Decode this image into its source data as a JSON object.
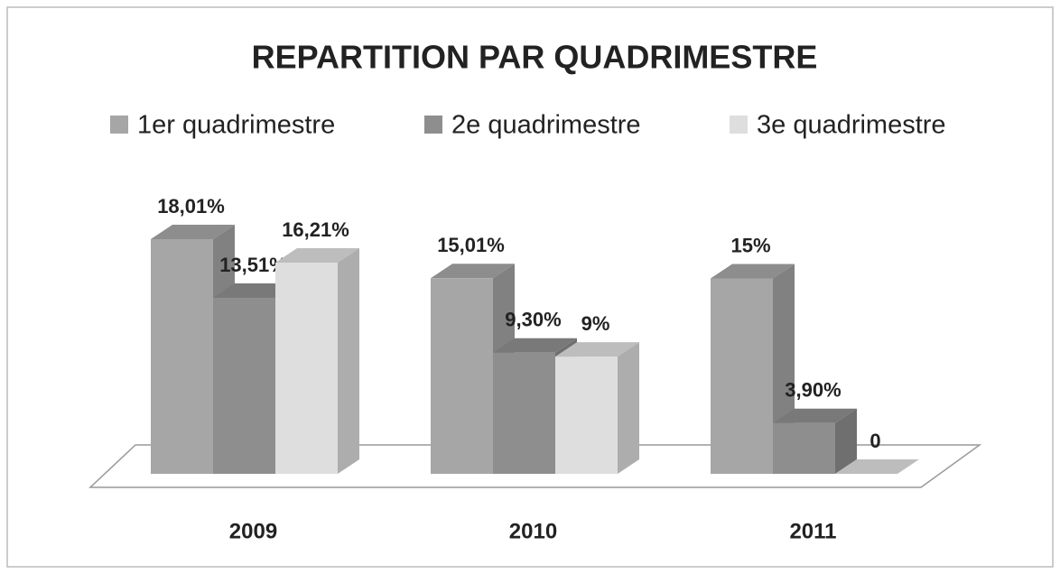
{
  "chart_data": {
    "type": "bar3d",
    "title": "REPARTITION PAR QUADRIMESTRE",
    "categories": [
      "2009",
      "2010",
      "2011"
    ],
    "series": [
      {
        "name": "1er quadrimestre",
        "color": "#a6a6a6",
        "values": [
          18.01,
          15.01,
          15
        ],
        "value_labels": [
          "18,01%",
          "15,01%",
          "15%"
        ]
      },
      {
        "name": "2e quadrimestre",
        "color": "#8e8e8e",
        "values": [
          13.51,
          9.3,
          3.9
        ],
        "value_labels": [
          "13,51%",
          "9,30%",
          "3,90%"
        ]
      },
      {
        "name": "3e quadrimestre",
        "color": "#dedede",
        "values": [
          16.21,
          9,
          0
        ],
        "value_labels": [
          "16,21%",
          "9%",
          "0"
        ]
      }
    ],
    "legend": "top"
  }
}
